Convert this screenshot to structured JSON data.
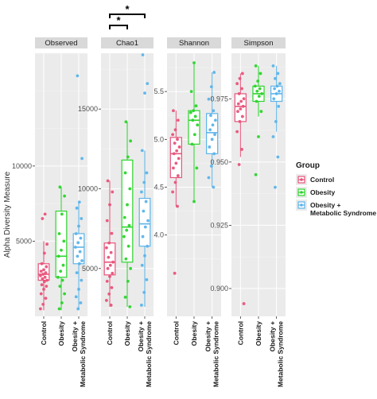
{
  "chart_data": {
    "type": "boxplot",
    "ylabel": "Alpha Diversity Measure",
    "categories": [
      "Control",
      "Obesity",
      "Obesity +\nMetabolic Syndrome"
    ],
    "legend": {
      "title": "Group",
      "placement": "right",
      "entries": [
        {
          "label": "Control",
          "color": "#E8537A"
        },
        {
          "label": "Obesity",
          "color": "#2BD42B"
        },
        {
          "label": "Obesity +\nMetabolic Syndrome",
          "color": "#5BB4EA"
        }
      ]
    },
    "panels": [
      {
        "name": "Observed",
        "ylim": [
          0,
          17500
        ],
        "yticks": [
          5000,
          10000
        ],
        "yticklabels": [
          "5000",
          "10000"
        ],
        "boxes": [
          {
            "q1": 2400,
            "median": 2800,
            "q3": 3500,
            "whisker_low": 400,
            "whisker_high": 5000
          },
          {
            "q1": 2600,
            "median": 4000,
            "q3": 7000,
            "whisker_low": 400,
            "whisker_high": 8600
          },
          {
            "q1": 3500,
            "median": 4600,
            "q3": 5500,
            "whisker_low": 400,
            "whisker_high": 7600
          }
        ],
        "points": [
          [
            500,
            800,
            1200,
            1500,
            1800,
            2000,
            2100,
            2300,
            2400,
            2500,
            2600,
            2700,
            2800,
            2900,
            3000,
            3100,
            3300,
            3500,
            4200,
            4800,
            6500,
            6800
          ],
          [
            500,
            900,
            1500,
            2000,
            2400,
            2600,
            3000,
            3400,
            4000,
            4400,
            5000,
            5500,
            6800,
            8000,
            8600
          ],
          [
            500,
            900,
            1300,
            1800,
            2400,
            2900,
            3500,
            3700,
            4000,
            4300,
            4600,
            4900,
            5200,
            5500,
            6000,
            6500,
            7200,
            7600,
            10500,
            16000
          ]
        ]
      },
      {
        "name": "Chao1",
        "ylim": [
          2000,
          18500
        ],
        "yticks": [
          5000,
          10000,
          15000
        ],
        "yticklabels": [
          "5000",
          "10000",
          "15000"
        ],
        "boxes": [
          {
            "q1": 4600,
            "median": 5400,
            "q3": 6600,
            "whisker_low": 2600,
            "whisker_high": 10500
          },
          {
            "q1": 5400,
            "median": 7600,
            "q3": 11800,
            "whisker_low": 2600,
            "whisker_high": 14200
          },
          {
            "q1": 6400,
            "median": 7800,
            "q3": 9400,
            "whisker_low": 2600,
            "whisker_high": 12400
          }
        ],
        "points": [
          [
            2700,
            3000,
            3400,
            3800,
            4200,
            4500,
            4700,
            5000,
            5200,
            5400,
            5700,
            6000,
            6300,
            6600,
            7200,
            8000,
            9000,
            9800,
            10500
          ],
          [
            2600,
            3200,
            4200,
            5000,
            5600,
            6400,
            7000,
            7400,
            7700,
            8200,
            9000,
            10000,
            11000,
            12000,
            13000,
            14200
          ],
          [
            2700,
            3500,
            4300,
            5200,
            5800,
            6400,
            7000,
            7600,
            8000,
            8600,
            9200,
            9800,
            10400,
            11000,
            12400,
            16000,
            16600,
            18400
          ]
        ],
        "significance": [
          {
            "from": 0,
            "to": 1,
            "label": "*"
          },
          {
            "from": 0,
            "to": 2,
            "label": "*"
          }
        ]
      },
      {
        "name": "Shannon",
        "ylim": [
          3.15,
          5.9
        ],
        "yticks": [
          4.0,
          4.5,
          5.0,
          5.5
        ],
        "yticklabels": [
          "4.0",
          "4.5",
          "5.0",
          "5.5"
        ],
        "boxes": [
          {
            "q1": 4.6,
            "median": 4.85,
            "q3": 5.02,
            "whisker_low": 4.3,
            "whisker_high": 5.3
          },
          {
            "q1": 4.95,
            "median": 5.2,
            "q3": 5.3,
            "whisker_low": 4.35,
            "whisker_high": 5.8
          },
          {
            "q1": 4.85,
            "median": 5.07,
            "q3": 5.27,
            "whisker_low": 4.5,
            "whisker_high": 5.7
          }
        ],
        "points": [
          [
            3.6,
            4.3,
            4.45,
            4.55,
            4.62,
            4.7,
            4.75,
            4.8,
            4.85,
            4.88,
            4.92,
            4.96,
            5.0,
            5.05,
            5.1,
            5.2,
            5.3
          ],
          [
            4.35,
            4.7,
            4.95,
            5.05,
            5.15,
            5.2,
            5.24,
            5.28,
            5.3,
            5.35,
            5.5,
            5.8
          ],
          [
            4.5,
            4.6,
            4.72,
            4.85,
            4.92,
            5.0,
            5.05,
            5.1,
            5.15,
            5.2,
            5.25,
            5.3,
            5.42,
            5.55,
            5.7
          ]
        ]
      },
      {
        "name": "Simpson",
        "ylim": [
          0.889,
          0.993
        ],
        "yticks": [
          0.9,
          0.925,
          0.95,
          0.975
        ],
        "yticklabels": [
          "0.900",
          "0.925",
          "0.950",
          "0.975"
        ],
        "boxes": [
          {
            "q1": 0.966,
            "median": 0.972,
            "q3": 0.977,
            "whisker_low": 0.952,
            "whisker_high": 0.985
          },
          {
            "q1": 0.974,
            "median": 0.977,
            "q3": 0.98,
            "whisker_low": 0.968,
            "whisker_high": 0.988
          },
          {
            "q1": 0.974,
            "median": 0.977,
            "q3": 0.98,
            "whisker_low": 0.962,
            "whisker_high": 0.988
          }
        ],
        "points": [
          [
            0.894,
            0.949,
            0.955,
            0.962,
            0.966,
            0.968,
            0.97,
            0.971,
            0.972,
            0.973,
            0.974,
            0.975,
            0.977,
            0.979,
            0.981,
            0.983,
            0.985
          ],
          [
            0.945,
            0.96,
            0.97,
            0.974,
            0.976,
            0.977,
            0.978,
            0.979,
            0.98,
            0.982,
            0.985,
            0.988
          ],
          [
            0.94,
            0.952,
            0.96,
            0.966,
            0.972,
            0.975,
            0.977,
            0.978,
            0.979,
            0.98,
            0.981,
            0.983,
            0.985,
            0.988
          ]
        ]
      }
    ]
  }
}
